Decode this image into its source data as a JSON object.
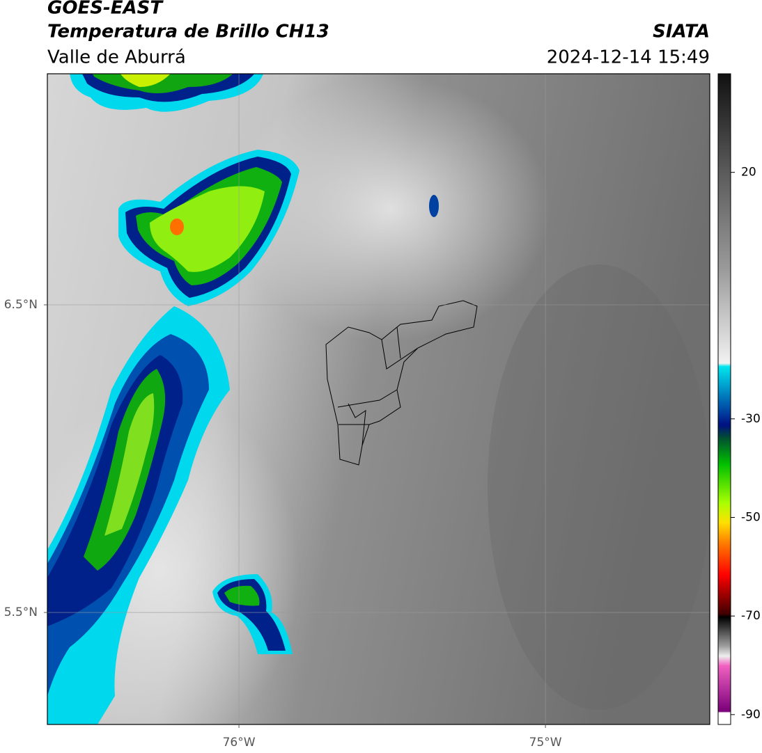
{
  "header": {
    "title": "GOES-EAST",
    "subtitle": "Temperatura de Brillo CH13",
    "region": "Valle de Aburrá",
    "source": "SIATA",
    "datetime": "2024-12-14 15:49"
  },
  "map": {
    "xlim": [
      -76.625,
      -74.464
    ],
    "ylim": [
      5.136,
      7.251
    ],
    "xticks": [
      {
        "value": -76,
        "label": "76°W"
      },
      {
        "value": -75,
        "label": "75°W"
      }
    ],
    "yticks": [
      {
        "value": 6.5,
        "label": "6.5°N"
      },
      {
        "value": 5.5,
        "label": "5.5°N"
      }
    ],
    "grid": true
  },
  "colorbar": {
    "lim": [
      -92,
      40
    ],
    "ticks": [
      20,
      -30,
      -50,
      -70,
      -90
    ]
  }
}
